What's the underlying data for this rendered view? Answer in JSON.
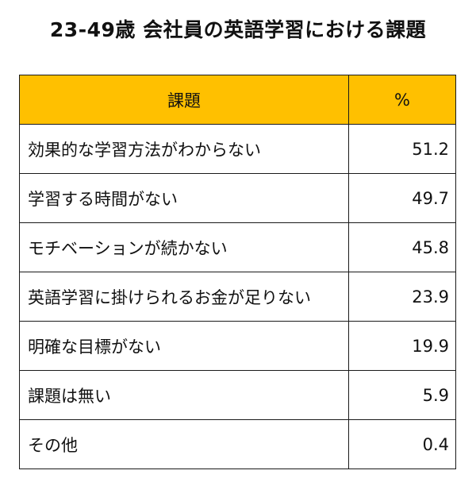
{
  "chart_data": {
    "type": "table",
    "title": "23-49歳 会社員の英語学習における課題",
    "columns": [
      "課題",
      "%"
    ],
    "rows": [
      {
        "label": "効果的な学習方法がわからない",
        "value": "51.2"
      },
      {
        "label": "学習する時間がない",
        "value": "49.7"
      },
      {
        "label": "モチベーションが続かない",
        "value": "45.8"
      },
      {
        "label": "英語学習に掛けられるお金が足りない",
        "value": "23.9"
      },
      {
        "label": "明確な目標がない",
        "value": "19.9"
      },
      {
        "label": "課題は無い",
        "value": "5.9"
      },
      {
        "label": "その他",
        "value": "0.4"
      }
    ],
    "header_color": "#ffc000"
  }
}
